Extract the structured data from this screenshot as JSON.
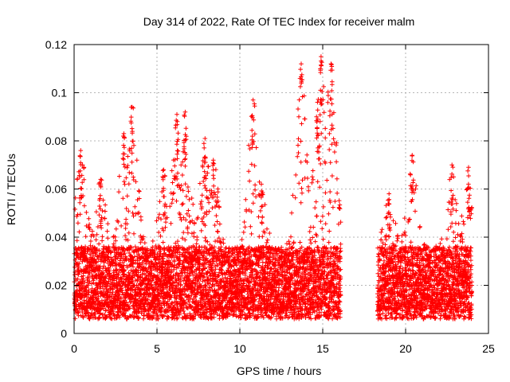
{
  "chart_data": {
    "type": "scatter",
    "title": "Day 314 of 2022, Rate Of TEC Index for receiver malm",
    "xlabel": "GPS time / hours",
    "ylabel": "ROTI / TECUs",
    "xlim": [
      0,
      25
    ],
    "ylim": [
      0,
      0.12
    ],
    "x_ticks": [
      0,
      5,
      10,
      15,
      20,
      25
    ],
    "y_ticks": [
      0,
      0.02,
      0.04,
      0.06,
      0.08,
      0.1,
      0.12
    ],
    "grid": true,
    "marker": "+",
    "color": "#ff0000",
    "gap_hours": [
      16.1,
      18.3
    ],
    "data_end_hours": 24.0,
    "peaks": [
      {
        "x": 0.4,
        "y": 0.076
      },
      {
        "x": 1.6,
        "y": 0.064
      },
      {
        "x": 3.0,
        "y": 0.083
      },
      {
        "x": 3.5,
        "y": 0.094
      },
      {
        "x": 5.4,
        "y": 0.068
      },
      {
        "x": 6.2,
        "y": 0.091
      },
      {
        "x": 6.7,
        "y": 0.092
      },
      {
        "x": 7.9,
        "y": 0.081
      },
      {
        "x": 8.4,
        "y": 0.072
      },
      {
        "x": 10.8,
        "y": 0.097
      },
      {
        "x": 11.3,
        "y": 0.062
      },
      {
        "x": 13.7,
        "y": 0.112
      },
      {
        "x": 14.7,
        "y": 0.089
      },
      {
        "x": 14.9,
        "y": 0.115
      },
      {
        "x": 15.5,
        "y": 0.112
      },
      {
        "x": 19.0,
        "y": 0.058
      },
      {
        "x": 20.4,
        "y": 0.074
      },
      {
        "x": 22.8,
        "y": 0.07
      },
      {
        "x": 23.8,
        "y": 0.069
      }
    ]
  }
}
